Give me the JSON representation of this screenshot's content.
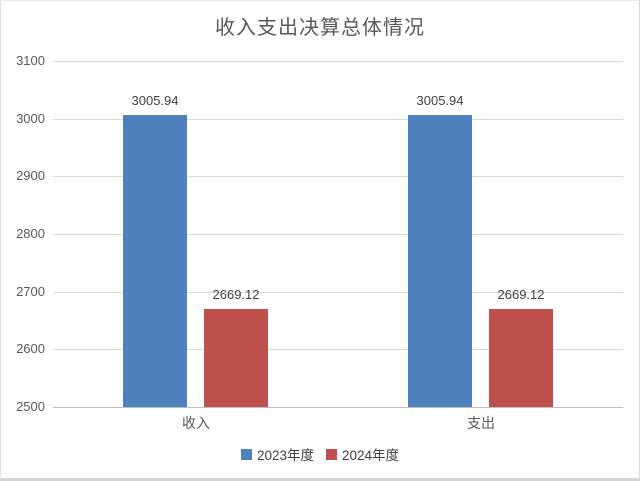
{
  "chart_data": {
    "type": "bar",
    "title": "收入支出决算总体情况",
    "categories": [
      "收入",
      "支出"
    ],
    "series": [
      {
        "name": "2023年度",
        "color": "#4E81BD",
        "values": [
          3005.94,
          3005.94
        ]
      },
      {
        "name": "2024年度",
        "color": "#C0504D",
        "values": [
          2669.12,
          2669.12
        ]
      }
    ],
    "y_ticks": [
      "3100",
      "3000",
      "2900",
      "2800",
      "2700",
      "2600",
      "2500"
    ],
    "ylim": [
      2500,
      3100
    ],
    "grid": true,
    "legend_position": "bottom",
    "data_labels_shown": true
  },
  "colors": {
    "gridline": "#D9D9D9",
    "axis_line": "#BFBFBF",
    "title_text": "#595959",
    "tick_text": "#595959",
    "label_text": "#404040"
  }
}
